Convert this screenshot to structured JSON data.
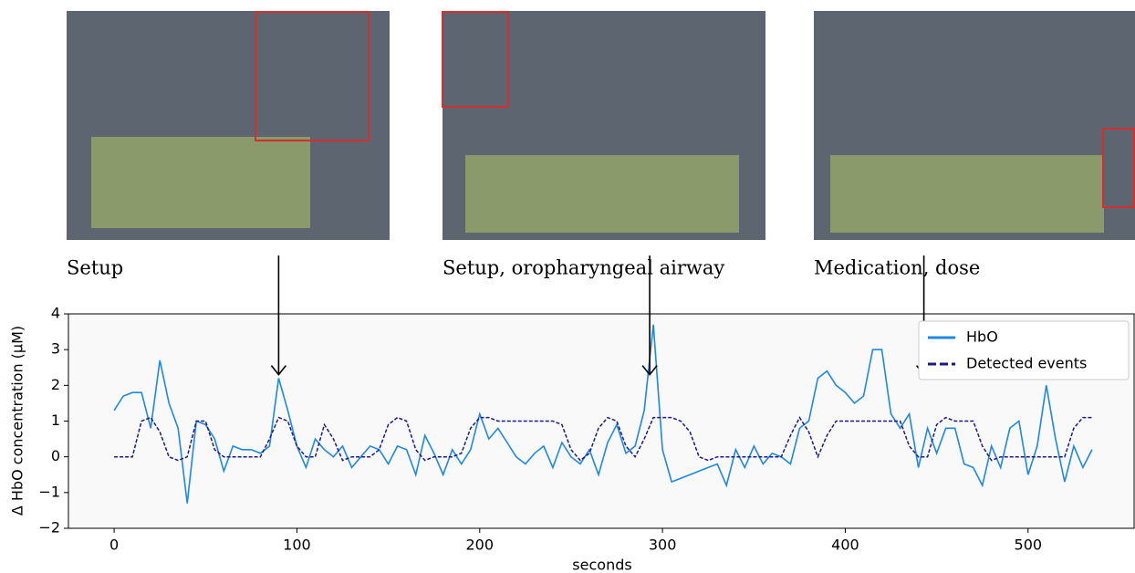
{
  "chart_data": {
    "type": "line",
    "annotations": [
      {
        "text": "Setup",
        "x": 90,
        "y": 2.3
      },
      {
        "text": "Setup, oropharyngeal airway",
        "x": 293,
        "y": 2.3
      },
      {
        "text": "Medication, dose",
        "x": 443,
        "y": 2.3
      }
    ],
    "xlabel": "seconds",
    "ylabel": "Δ HbO concentration (μM)",
    "xlim": [
      -25,
      558
    ],
    "ylim": [
      -2,
      4
    ],
    "xticks": [
      0,
      100,
      200,
      300,
      400,
      500
    ],
    "yticks": [
      {
        "value": -2,
        "label": "−2"
      },
      {
        "value": -1,
        "label": "−1"
      },
      0,
      1,
      2,
      3,
      4
    ],
    "legend": "upper right",
    "x": [
      0,
      5,
      10,
      15,
      20,
      25,
      30,
      35,
      40,
      45,
      50,
      55,
      60,
      65,
      70,
      75,
      80,
      85,
      90,
      95,
      100,
      105,
      110,
      115,
      120,
      125,
      130,
      135,
      140,
      145,
      150,
      155,
      160,
      165,
      170,
      175,
      180,
      185,
      190,
      195,
      200,
      205,
      210,
      215,
      220,
      225,
      230,
      235,
      240,
      245,
      250,
      255,
      260,
      265,
      270,
      275,
      280,
      285,
      290,
      295,
      300,
      305,
      310,
      315,
      320,
      325,
      330,
      335,
      340,
      345,
      350,
      355,
      360,
      365,
      370,
      375,
      380,
      385,
      390,
      395,
      400,
      405,
      410,
      415,
      420,
      425,
      430,
      435,
      440,
      445,
      450,
      455,
      460,
      465,
      470,
      475,
      480,
      485,
      490,
      495,
      500,
      505,
      510,
      515,
      520,
      525,
      530,
      535
    ],
    "series": [
      {
        "name": "HbO",
        "color": "#1e88e5",
        "linestyle": "solid",
        "values": [
          1.3,
          1.7,
          1.8,
          1.8,
          0.8,
          2.7,
          1.5,
          0.8,
          -1.3,
          1.0,
          0.9,
          0.5,
          -0.4,
          0.3,
          0.2,
          0.2,
          0.1,
          0.3,
          2.2,
          1.3,
          0.3,
          -0.3,
          0.5,
          0.2,
          0,
          0.3,
          -0.3,
          0,
          0.3,
          0.2,
          -0.2,
          0.3,
          0.2,
          -0.5,
          0.6,
          0.1,
          -0.5,
          0.2,
          -0.2,
          0.2,
          1.2,
          0.5,
          0.8,
          0.4,
          0,
          -0.2,
          0.1,
          0.3,
          -0.3,
          0.4,
          0,
          -0.2,
          0.2,
          -0.5,
          0.4,
          0.9,
          0.1,
          0.3,
          1.3,
          3.7,
          0.2,
          -0.7,
          -0.6,
          -0.5,
          -0.4,
          -0.3,
          -0.2,
          -0.8,
          0.2,
          -0.3,
          0.3,
          -0.2,
          0.1,
          0,
          -0.2,
          0.8,
          1.0,
          2.2,
          2.4,
          2.0,
          1.8,
          1.5,
          1.7,
          3.0,
          3.0,
          1.2,
          0.8,
          1.2,
          -0.3,
          0.8,
          0.1,
          0.8,
          0.8,
          -0.2,
          -0.3,
          -0.8,
          0.3,
          -0.3,
          0.8,
          1.0,
          -0.5,
          0.3,
          2.0,
          0.5,
          -0.7,
          0.3,
          -0.3,
          0.2
        ]
      },
      {
        "name": "Detected events",
        "color": "#1a1a8c",
        "linestyle": "dashed",
        "values": [
          0,
          0,
          0,
          1.0,
          1.1,
          0.7,
          0,
          -0.1,
          0,
          1.0,
          1.0,
          0.2,
          0,
          0,
          0,
          0,
          0,
          0.5,
          1.1,
          1.0,
          0.3,
          0,
          0,
          0.9,
          0.5,
          -0.1,
          0,
          0,
          0,
          0.2,
          0.9,
          1.1,
          1.0,
          0.2,
          -0.1,
          0,
          0,
          0,
          0.1,
          0.8,
          1.1,
          1.1,
          1.0,
          1.0,
          1.0,
          1.0,
          1.0,
          1.0,
          1.0,
          0.9,
          0.2,
          -0.1,
          0.1,
          0.8,
          1.1,
          1.0,
          0.3,
          0,
          0.5,
          1.1,
          1.1,
          1.1,
          1.0,
          0.7,
          0,
          -0.1,
          0,
          0,
          0,
          0,
          0,
          0,
          0,
          0,
          0.6,
          1.1,
          0.7,
          0,
          0.6,
          1.0,
          1.0,
          1.0,
          1.0,
          1.0,
          1.0,
          1.0,
          1.0,
          0.3,
          0,
          0,
          0.9,
          1.1,
          1.0,
          1.0,
          1.0,
          0.3,
          -0.1,
          0,
          0,
          0,
          0,
          0,
          0,
          0,
          0,
          0.8,
          1.1,
          1.1
        ]
      }
    ]
  }
}
